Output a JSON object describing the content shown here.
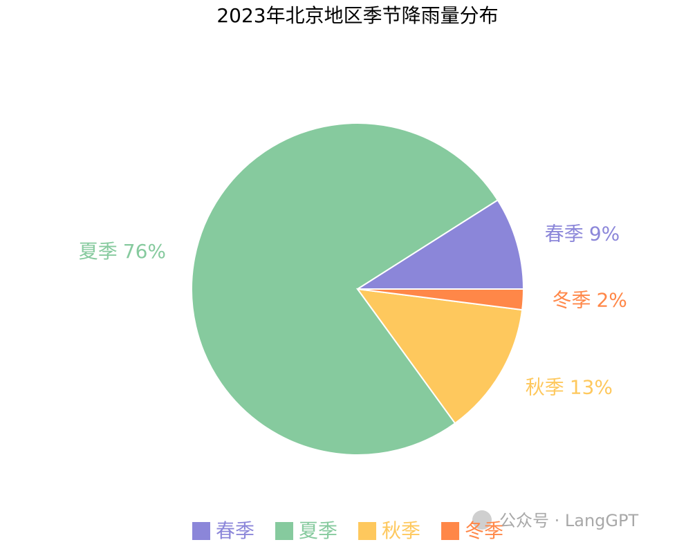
{
  "chart_data": {
    "type": "pie",
    "title": "2023年北京地区季节降雨量分布",
    "categories": [
      "春季",
      "夏季",
      "秋季",
      "冬季"
    ],
    "values": [
      9,
      76,
      13,
      2
    ],
    "value_labels": [
      "9%",
      "76%",
      "13%",
      "2%"
    ],
    "colors": [
      "#8b86d9",
      "#86ca9e",
      "#fec85d",
      "#ff8748"
    ],
    "legend": "bottom"
  },
  "watermark": "公众号 · LangGPT"
}
